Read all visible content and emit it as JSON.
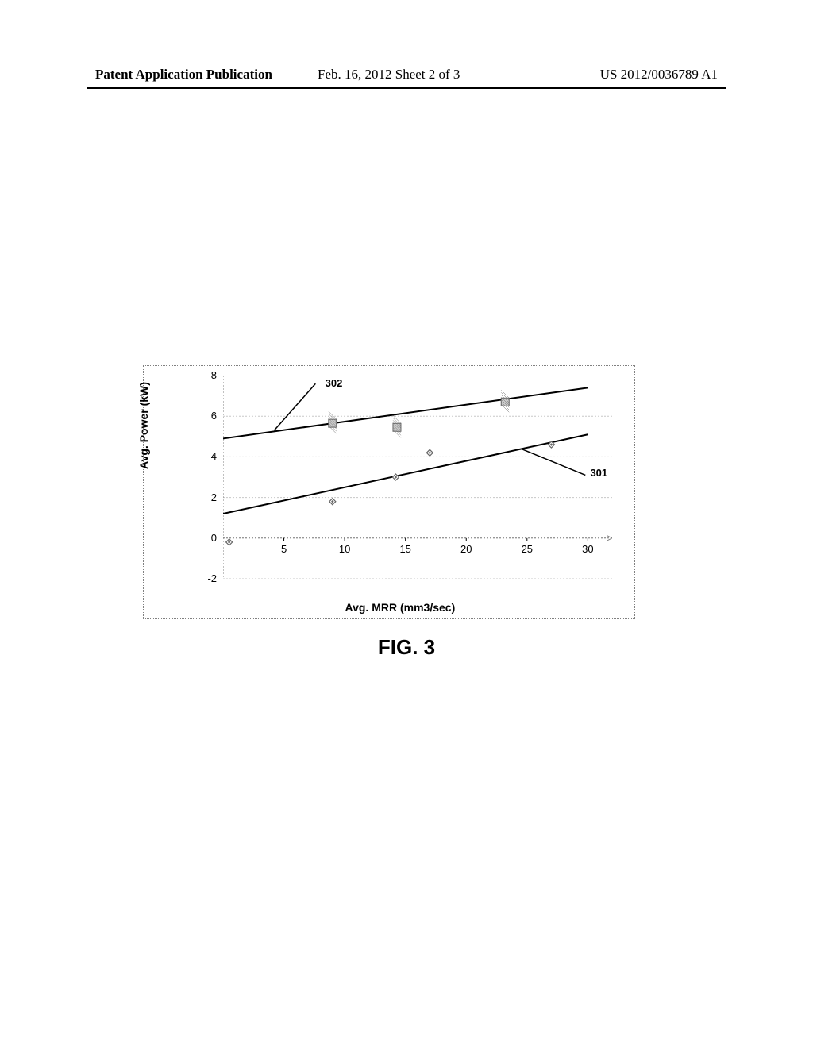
{
  "header": {
    "left": "Patent Application Publication",
    "center": "Feb. 16, 2012  Sheet 2 of 3",
    "right": "US 2012/0036789 A1"
  },
  "figure_label": "FIG. 3",
  "chart": {
    "type": "scatter-with-lines",
    "xlabel": "Avg. MRR  (mm3/sec)",
    "ylabel": "Avg. Power (kW)",
    "xlim": [
      0,
      32
    ],
    "ylim": [
      -2,
      8
    ],
    "xtick_step": 5,
    "xtick_start": 5,
    "xtick_end": 30,
    "ytick_step": 2,
    "ytick_start": -2,
    "ytick_end": 8,
    "background_color": "#ffffff",
    "grid_color": "#c8c8c8",
    "grid_dash": "2,2",
    "axis_color": "#808080",
    "axis_dash": "2,2",
    "tick_fontsize": 13,
    "label_fontsize": 14,
    "label_fontweight": "bold",
    "line_color": "#000000",
    "line_width": 2,
    "series": [
      {
        "name": "301",
        "marker": "diamond-outline",
        "marker_size": 8,
        "marker_color": "#666666",
        "points": [
          {
            "x": 0.5,
            "y": -0.2
          },
          {
            "x": 9,
            "y": 1.8
          },
          {
            "x": 14.2,
            "y": 3.0
          },
          {
            "x": 17,
            "y": 4.2
          },
          {
            "x": 27,
            "y": 4.6
          }
        ],
        "trend_line": {
          "x1": 0,
          "y1": 1.2,
          "x2": 30,
          "y2": 5.1
        },
        "annot_label": "301",
        "annot_line": {
          "x1": 24.5,
          "y1": 4.4,
          "x2": 29.8,
          "y2": 3.1
        },
        "annot_pos": {
          "x": 30.2,
          "y": 3.2
        }
      },
      {
        "name": "302",
        "marker": "square-hatched",
        "marker_size": 10,
        "marker_color": "#666666",
        "points": [
          {
            "x": 9,
            "y": 5.65
          },
          {
            "x": 14.3,
            "y": 5.45
          },
          {
            "x": 23.2,
            "y": 6.7
          }
        ],
        "trend_line": {
          "x1": 0,
          "y1": 4.9,
          "x2": 30,
          "y2": 7.4
        },
        "annot_label": "302",
        "annot_line": {
          "x1": 4.2,
          "y1": 5.3,
          "x2": 7.6,
          "y2": 7.6
        },
        "annot_pos": {
          "x": 8.4,
          "y": 7.6
        }
      }
    ]
  }
}
